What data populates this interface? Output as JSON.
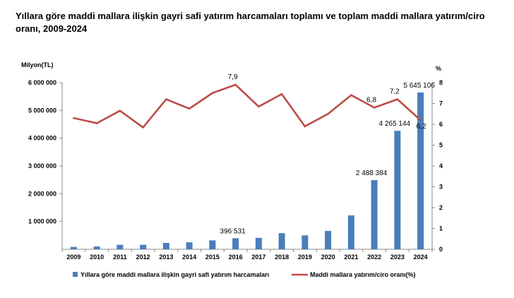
{
  "page": {
    "title": "Yıllara göre maddi mallara ilişkin gayri safi yatırım harcamaları toplamı ve toplam maddi mallara yatırım/ciro oranı, 2009-2024"
  },
  "chart_data": {
    "type": "bar",
    "title": "Yıllara göre maddi mallara ilişkin gayri safi yatırım harcamaları toplamı ve toplam maddi mallara yatırım/ciro oranı, 2009-2024",
    "y_left_label": "Milyon(TL)",
    "y_right_label": "%",
    "categories": [
      "2009",
      "2010",
      "2011",
      "2012",
      "2013",
      "2014",
      "2015",
      "2016",
      "2017",
      "2018",
      "2019",
      "2020",
      "2021",
      "2022",
      "2023",
      "2024"
    ],
    "ylim_left": [
      0,
      6000000
    ],
    "ylim_right": [
      0,
      8
    ],
    "y_left_ticks": [
      {
        "value": 1000000,
        "label": "1 000 000"
      },
      {
        "value": 2000000,
        "label": "2 000 000"
      },
      {
        "value": 3000000,
        "label": "3 000 000"
      },
      {
        "value": 4000000,
        "label": "4 000 000"
      },
      {
        "value": 5000000,
        "label": "5 000 000"
      },
      {
        "value": 6000000,
        "label": "6 000 000"
      }
    ],
    "y_right_ticks": [
      {
        "value": 0,
        "label": "0"
      },
      {
        "value": 1,
        "label": "1"
      },
      {
        "value": 2,
        "label": "2"
      },
      {
        "value": 3,
        "label": "3"
      },
      {
        "value": 4,
        "label": "4"
      },
      {
        "value": 5,
        "label": "5"
      },
      {
        "value": 6,
        "label": "6"
      },
      {
        "value": 7,
        "label": "7"
      },
      {
        "value": 8,
        "label": "8"
      }
    ],
    "grid": false,
    "legend_position": "bottom",
    "series": [
      {
        "name": "Yıllara göre maddi mallara ilişkin gayri safi yatırım harcamaları",
        "type": "bar",
        "axis": "left",
        "color": "#4a7ebb",
        "values": [
          85000,
          100000,
          160000,
          160000,
          230000,
          250000,
          320000,
          396531,
          410000,
          580000,
          500000,
          660000,
          1220000,
          2488384,
          4265144,
          5645106
        ],
        "labels": [
          "",
          "",
          "",
          "",
          "",
          "",
          "",
          "396 531",
          "",
          "",
          "",
          "",
          "",
          "2 488 384",
          "4 265 144",
          "5 645 106"
        ]
      },
      {
        "name": "Maddi mallara yatırım/ciro oranı(%)",
        "type": "line",
        "axis": "right",
        "color": "#be4b48",
        "values": [
          6.3,
          6.05,
          6.65,
          5.85,
          7.2,
          6.75,
          7.5,
          7.9,
          6.85,
          7.45,
          5.9,
          6.5,
          7.4,
          6.8,
          7.2,
          6.2
        ],
        "labels": [
          "",
          "",
          "",
          "",
          "",
          "",
          "",
          "7,9",
          "",
          "",
          "",
          "",
          "",
          "6,8",
          "7,2",
          "6,2"
        ]
      }
    ]
  }
}
